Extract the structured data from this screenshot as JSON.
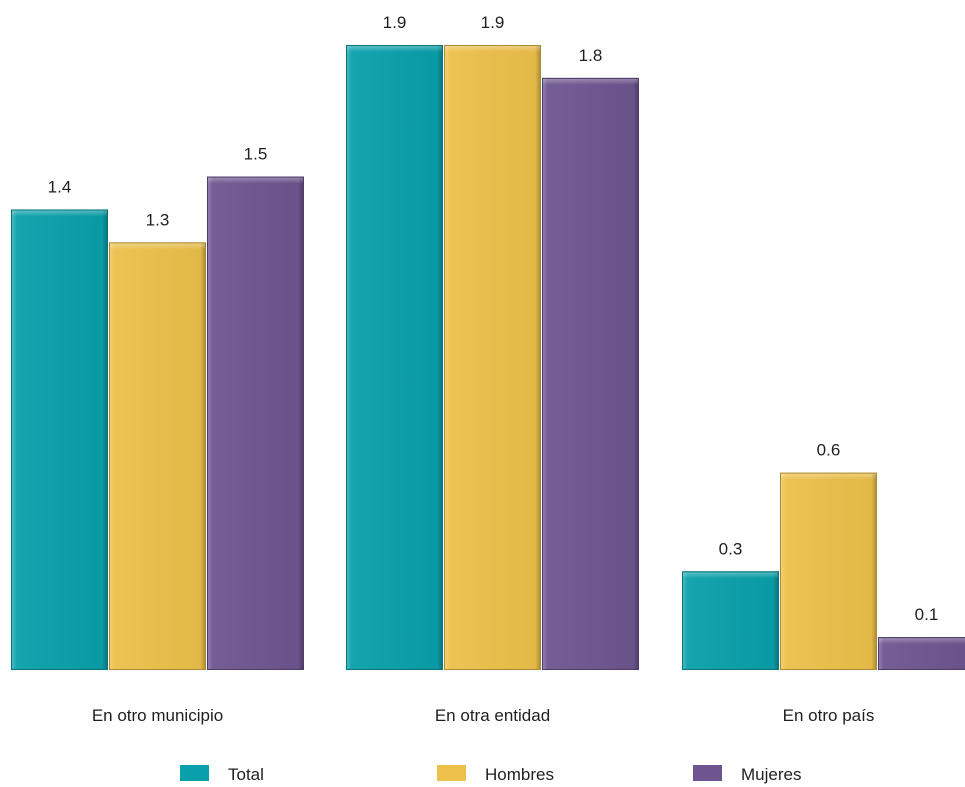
{
  "chart_data": {
    "type": "bar",
    "categories": [
      "En otro municipio",
      "En otra entidad",
      "En otro país"
    ],
    "series": [
      {
        "name": "Total",
        "values": [
          1.4,
          1.9,
          0.3
        ],
        "color": "#0aa0ab"
      },
      {
        "name": "Hombres",
        "values": [
          1.3,
          1.9,
          0.6
        ],
        "color": "#ecc04a"
      },
      {
        "name": "Mujeres",
        "values": [
          1.5,
          1.8,
          0.1
        ],
        "color": "#6e5590"
      }
    ],
    "value_labels": [
      [
        "1.4",
        "1.9",
        "0.3"
      ],
      [
        "1.3",
        "1.9",
        "0.6"
      ],
      [
        "1.5",
        "1.8",
        "0.1"
      ]
    ],
    "ylim": [
      0,
      1.9
    ],
    "grid": false,
    "legend_position": "bottom"
  }
}
